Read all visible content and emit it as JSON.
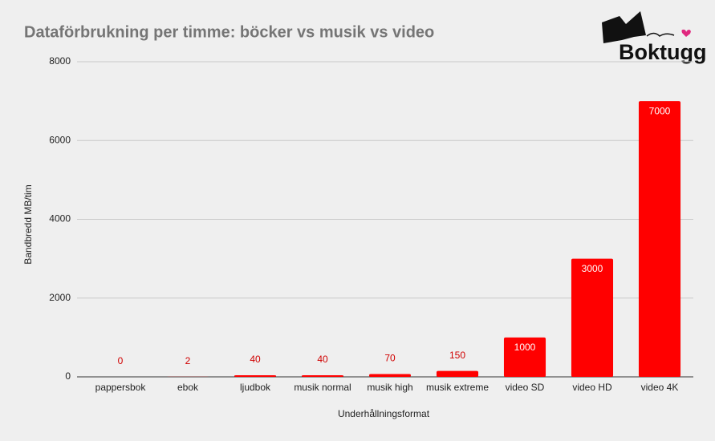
{
  "chart_data": {
    "type": "bar",
    "title": "Dataförbrukning per timme: böcker vs musik vs video",
    "x_label": "Underhållningsformat",
    "y_label": "Bandbredd MB/tim",
    "categories": [
      "pappersbok",
      "ebok",
      "ljudbok",
      "musik normal",
      "musik high",
      "musik extreme",
      "video SD",
      "video HD",
      "video 4K"
    ],
    "values": [
      0,
      2,
      40,
      40,
      70,
      150,
      1000,
      3000,
      7000
    ],
    "color": "#ff0000",
    "ylim": [
      0,
      8000
    ],
    "yticks": [
      0,
      2000,
      4000,
      6000,
      8000
    ],
    "grid": true
  },
  "logo": {
    "text": "Boktugg"
  }
}
